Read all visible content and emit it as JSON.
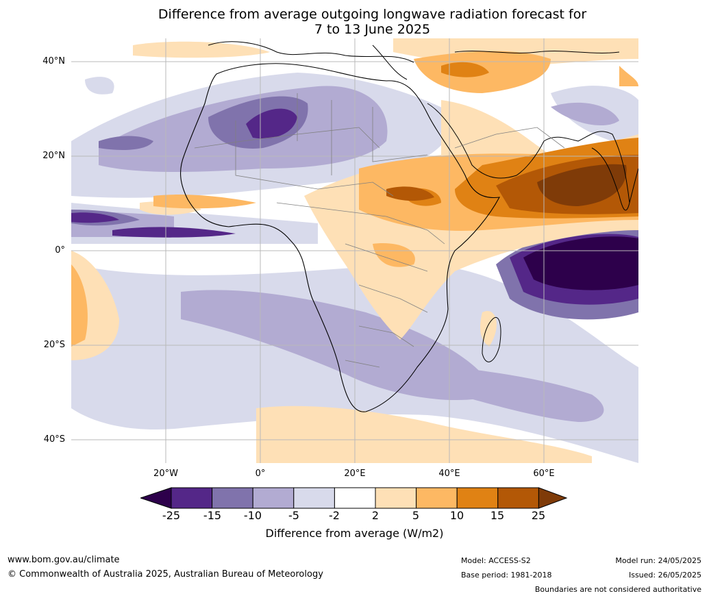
{
  "title_line1": "Difference from average outgoing longwave radiation forecast for",
  "title_line2": "7 to 13 June 2025",
  "lat_labels": [
    "40°N",
    "20°N",
    "0°",
    "20°S",
    "40°S"
  ],
  "lon_labels": [
    "20°W",
    "0°",
    "20°E",
    "40°E",
    "60°E"
  ],
  "colorbar": {
    "ticks": [
      "-25",
      "-15",
      "-10",
      "-5",
      "-2",
      "2",
      "5",
      "10",
      "15",
      "25"
    ],
    "label": "Difference from average (W/m2)",
    "colors": [
      "#2d004b",
      "#542788",
      "#8073ac",
      "#b2abd2",
      "#d8daeb",
      "#ffffff",
      "#fee0b6",
      "#fdb863",
      "#e08214",
      "#b35806",
      "#7f3b08"
    ]
  },
  "footer": {
    "website": "www.bom.gov.au/climate",
    "copyright": "© Commonwealth of Australia 2025, Australian Bureau of Meteorology",
    "model": "Model: ACCESS-S2",
    "base_period": "Base period: 1981-2018",
    "model_run": "Model run: 24/05/2025",
    "issued": "Issued: 26/05/2025",
    "disclaimer": "Boundaries are not considered authoritative"
  }
}
